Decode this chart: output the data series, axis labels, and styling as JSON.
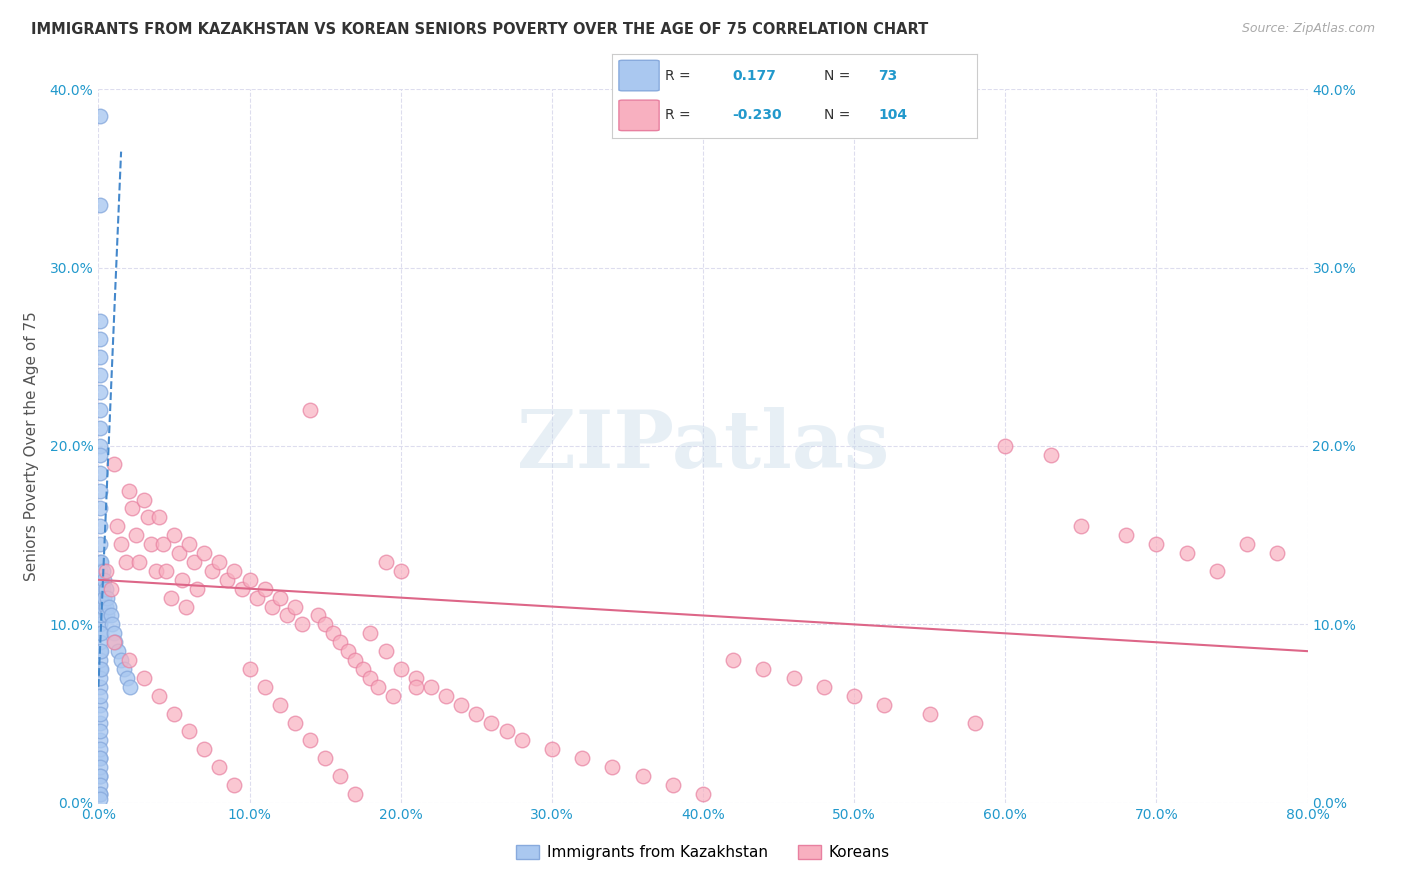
{
  "title": "IMMIGRANTS FROM KAZAKHSTAN VS KOREAN SENIORS POVERTY OVER THE AGE OF 75 CORRELATION CHART",
  "source": "Source: ZipAtlas.com",
  "ylabel": "Seniors Poverty Over the Age of 75",
  "watermark": "ZIPatlas",
  "legend_label1": "Immigrants from Kazakhstan",
  "legend_label2": "Koreans",
  "R1_text": "0.177",
  "N1_text": "73",
  "R2_text": "-0.230",
  "N2_text": "104",
  "xlim": [
    0.0,
    0.8
  ],
  "ylim": [
    0.0,
    0.4
  ],
  "xticks": [
    0.0,
    0.1,
    0.2,
    0.3,
    0.4,
    0.5,
    0.6,
    0.7,
    0.8
  ],
  "yticks": [
    0.0,
    0.1,
    0.2,
    0.3,
    0.4
  ],
  "blue_scatter_color": "#aac8f0",
  "blue_edge_color": "#88aadd",
  "pink_scatter_color": "#f8b0c0",
  "pink_edge_color": "#e880a0",
  "blue_line_color": "#4488cc",
  "pink_line_color": "#dd6688",
  "tick_color": "#2299cc",
  "grid_color": "#ddddee",
  "title_color": "#333333",
  "source_color": "#aaaaaa",
  "ylabel_color": "#555555",
  "watermark_color": "#c5d8e8",
  "blue_x": [
    0.001,
    0.001,
    0.001,
    0.001,
    0.001,
    0.001,
    0.001,
    0.001,
    0.001,
    0.001,
    0.001,
    0.001,
    0.001,
    0.001,
    0.001,
    0.001,
    0.001,
    0.001,
    0.001,
    0.001,
    0.001,
    0.001,
    0.001,
    0.001,
    0.001,
    0.001,
    0.001,
    0.001,
    0.001,
    0.001,
    0.001,
    0.001,
    0.001,
    0.001,
    0.001,
    0.001,
    0.001,
    0.001,
    0.001,
    0.001,
    0.002,
    0.002,
    0.002,
    0.002,
    0.002,
    0.002,
    0.002,
    0.003,
    0.003,
    0.003,
    0.004,
    0.004,
    0.005,
    0.005,
    0.006,
    0.006,
    0.007,
    0.008,
    0.009,
    0.01,
    0.011,
    0.013,
    0.015,
    0.017,
    0.019,
    0.021,
    0.001,
    0.001,
    0.001,
    0.001,
    0.001,
    0.001,
    0.001
  ],
  "blue_y": [
    0.385,
    0.335,
    0.27,
    0.26,
    0.25,
    0.24,
    0.23,
    0.22,
    0.21,
    0.2,
    0.195,
    0.185,
    0.175,
    0.165,
    0.155,
    0.145,
    0.135,
    0.125,
    0.115,
    0.105,
    0.095,
    0.085,
    0.075,
    0.065,
    0.055,
    0.045,
    0.035,
    0.025,
    0.015,
    0.005,
    0.13,
    0.12,
    0.11,
    0.1,
    0.09,
    0.08,
    0.07,
    0.06,
    0.05,
    0.04,
    0.135,
    0.125,
    0.115,
    0.105,
    0.095,
    0.085,
    0.075,
    0.13,
    0.12,
    0.11,
    0.125,
    0.115,
    0.12,
    0.11,
    0.115,
    0.105,
    0.11,
    0.105,
    0.1,
    0.095,
    0.09,
    0.085,
    0.08,
    0.075,
    0.07,
    0.065,
    0.03,
    0.025,
    0.02,
    0.015,
    0.01,
    0.005,
    0.002
  ],
  "pink_x": [
    0.005,
    0.008,
    0.01,
    0.012,
    0.015,
    0.018,
    0.02,
    0.022,
    0.025,
    0.027,
    0.03,
    0.033,
    0.035,
    0.038,
    0.04,
    0.043,
    0.045,
    0.048,
    0.05,
    0.053,
    0.055,
    0.058,
    0.06,
    0.063,
    0.065,
    0.07,
    0.075,
    0.08,
    0.085,
    0.09,
    0.095,
    0.1,
    0.105,
    0.11,
    0.115,
    0.12,
    0.125,
    0.13,
    0.135,
    0.14,
    0.145,
    0.15,
    0.155,
    0.16,
    0.165,
    0.17,
    0.175,
    0.18,
    0.185,
    0.19,
    0.195,
    0.2,
    0.21,
    0.22,
    0.23,
    0.24,
    0.25,
    0.26,
    0.27,
    0.28,
    0.3,
    0.32,
    0.34,
    0.36,
    0.38,
    0.4,
    0.42,
    0.44,
    0.46,
    0.48,
    0.5,
    0.52,
    0.55,
    0.58,
    0.6,
    0.63,
    0.65,
    0.68,
    0.7,
    0.72,
    0.74,
    0.76,
    0.78,
    0.01,
    0.02,
    0.03,
    0.04,
    0.05,
    0.06,
    0.07,
    0.08,
    0.09,
    0.1,
    0.11,
    0.12,
    0.13,
    0.14,
    0.15,
    0.16,
    0.17,
    0.18,
    0.19,
    0.2,
    0.21
  ],
  "pink_y": [
    0.13,
    0.12,
    0.19,
    0.155,
    0.145,
    0.135,
    0.175,
    0.165,
    0.15,
    0.135,
    0.17,
    0.16,
    0.145,
    0.13,
    0.16,
    0.145,
    0.13,
    0.115,
    0.15,
    0.14,
    0.125,
    0.11,
    0.145,
    0.135,
    0.12,
    0.14,
    0.13,
    0.135,
    0.125,
    0.13,
    0.12,
    0.125,
    0.115,
    0.12,
    0.11,
    0.115,
    0.105,
    0.11,
    0.1,
    0.22,
    0.105,
    0.1,
    0.095,
    0.09,
    0.085,
    0.08,
    0.075,
    0.07,
    0.065,
    0.135,
    0.06,
    0.13,
    0.07,
    0.065,
    0.06,
    0.055,
    0.05,
    0.045,
    0.04,
    0.035,
    0.03,
    0.025,
    0.02,
    0.015,
    0.01,
    0.005,
    0.08,
    0.075,
    0.07,
    0.065,
    0.06,
    0.055,
    0.05,
    0.045,
    0.2,
    0.195,
    0.155,
    0.15,
    0.145,
    0.14,
    0.13,
    0.145,
    0.14,
    0.09,
    0.08,
    0.07,
    0.06,
    0.05,
    0.04,
    0.03,
    0.02,
    0.01,
    0.075,
    0.065,
    0.055,
    0.045,
    0.035,
    0.025,
    0.015,
    0.005,
    0.095,
    0.085,
    0.075,
    0.065
  ]
}
